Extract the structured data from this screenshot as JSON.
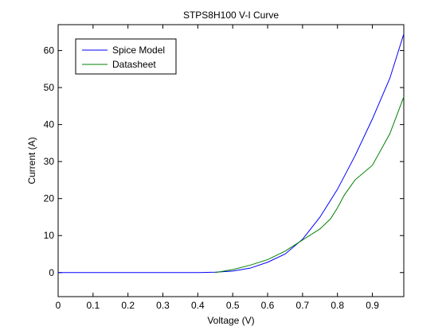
{
  "chart_data": {
    "type": "line",
    "title": "STPS8H100 V-I Curve",
    "xlabel": "Voltage (V)",
    "ylabel": "Current (A)",
    "xlim": [
      0,
      0.99
    ],
    "ylim": [
      -6.5,
      67
    ],
    "x_ticks": [
      0,
      0.1,
      0.2,
      0.3,
      0.4,
      0.5,
      0.6,
      0.7,
      0.8,
      0.9
    ],
    "x_tick_labels": [
      "0",
      "0.1",
      "0.2",
      "0.3",
      "0.4",
      "0.5",
      "0.6",
      "0.7",
      "0.8",
      "0.9"
    ],
    "y_ticks": [
      0,
      10,
      20,
      30,
      40,
      50,
      60
    ],
    "y_tick_labels": [
      "0",
      "10",
      "20",
      "30",
      "40",
      "50",
      "60"
    ],
    "grid": false,
    "legend_position": "top-left",
    "series": [
      {
        "name": "Spice Model",
        "color": "#0000ff",
        "x": [
          0,
          0.4,
          0.45,
          0.5,
          0.55,
          0.6,
          0.65,
          0.7,
          0.75,
          0.8,
          0.85,
          0.9,
          0.95,
          0.99
        ],
        "y": [
          0,
          0,
          0.1,
          0.4,
          1.2,
          2.8,
          5.0,
          9.0,
          15.0,
          22.5,
          31.5,
          41.5,
          52.5,
          64.5
        ]
      },
      {
        "name": "Datasheet",
        "color": "#008000",
        "x": [
          0.45,
          0.5,
          0.55,
          0.6,
          0.65,
          0.7,
          0.75,
          0.78,
          0.8,
          0.82,
          0.85,
          0.9,
          0.95,
          0.99
        ],
        "y": [
          0,
          0.8,
          2.0,
          3.5,
          5.8,
          8.8,
          11.8,
          14.5,
          17.5,
          21.0,
          25.0,
          29.0,
          37.5,
          47.5
        ]
      }
    ]
  }
}
